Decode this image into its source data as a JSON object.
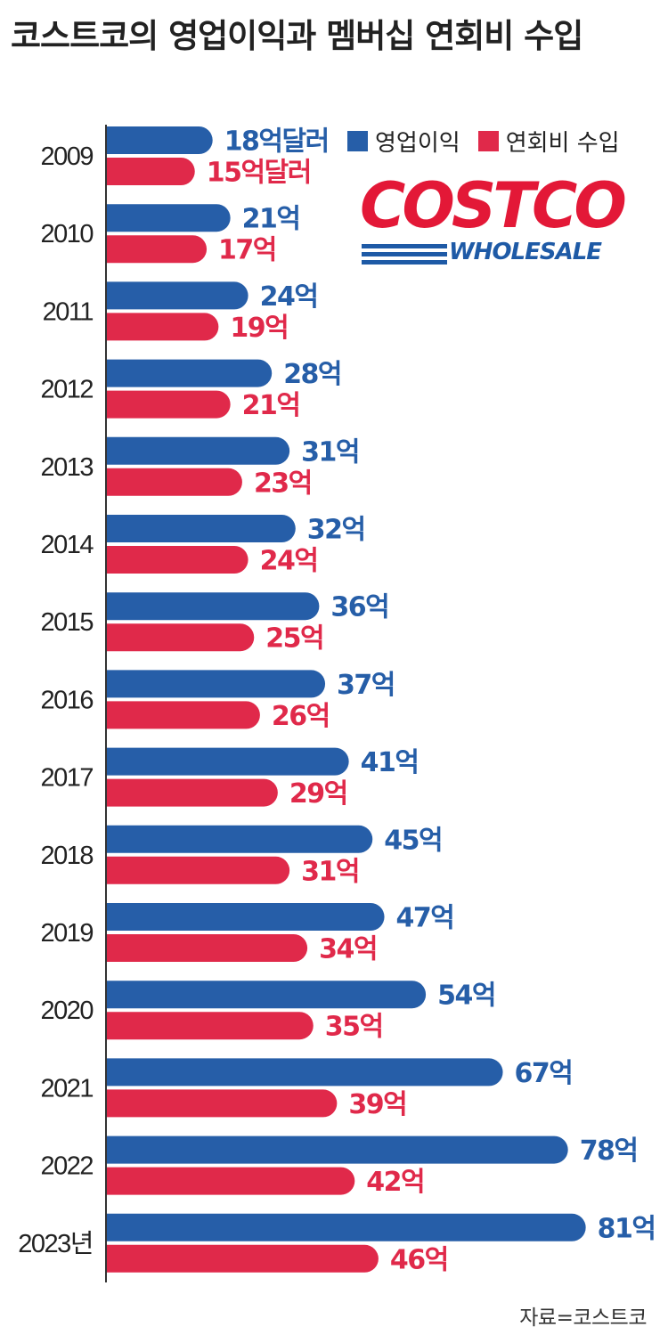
{
  "title": "코스트코의 영업이익과 멤버십 연회비 수입",
  "source": "자료=코스트코",
  "logo": {
    "word": "COSTCO",
    "sub": "WHOLESALE"
  },
  "colors": {
    "operating_profit": "#265ea8",
    "membership_fee": "#e0294a",
    "text": "#222222"
  },
  "chart_data": {
    "type": "bar",
    "orientation": "horizontal",
    "categories": [
      "2009",
      "2010",
      "2011",
      "2012",
      "2013",
      "2014",
      "2015",
      "2016",
      "2017",
      "2018",
      "2019",
      "2020",
      "2021",
      "2022",
      "2023년"
    ],
    "series": [
      {
        "name": "영업이익",
        "values": [
          18,
          21,
          24,
          28,
          31,
          32,
          36,
          37,
          41,
          45,
          47,
          54,
          67,
          78,
          81
        ],
        "labels": [
          "18억달러",
          "21억",
          "24억",
          "28억",
          "31억",
          "32억",
          "36억",
          "37억",
          "41억",
          "45억",
          "47억",
          "54억",
          "67억",
          "78억",
          "81억"
        ]
      },
      {
        "name": "연회비 수입",
        "values": [
          15,
          17,
          19,
          21,
          23,
          24,
          25,
          26,
          29,
          31,
          34,
          35,
          39,
          42,
          46
        ],
        "labels": [
          "15억달러",
          "17억",
          "19억",
          "21억",
          "23억",
          "24억",
          "25억",
          "26억",
          "29억",
          "31억",
          "34억",
          "35억",
          "39억",
          "42억",
          "46억"
        ]
      }
    ],
    "legend_position": "top-right"
  }
}
